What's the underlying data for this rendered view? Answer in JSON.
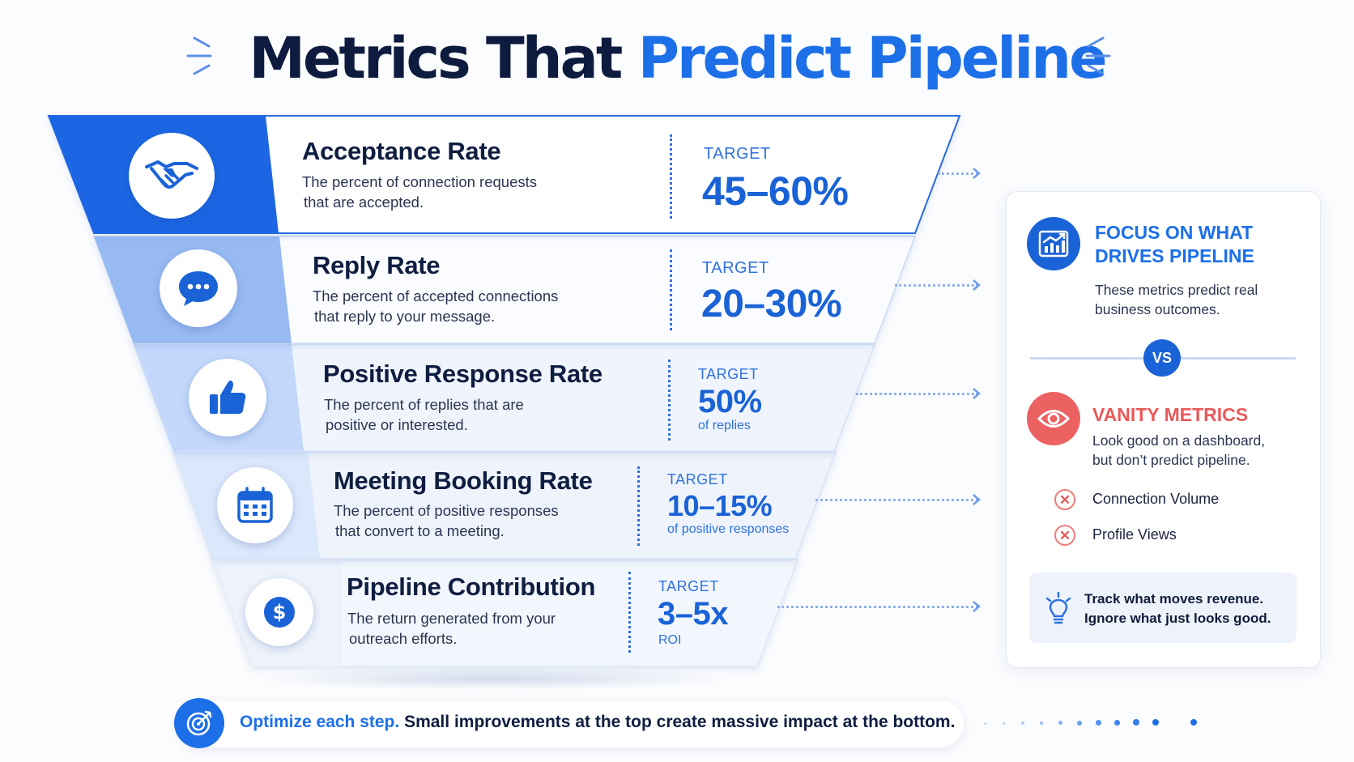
{
  "title": {
    "part1": "Metrics That",
    "part2": "Predict Pipeline"
  },
  "colors": {
    "primary": "#1d6fe8",
    "navy": "#0d1b3e",
    "danger": "#e85a5a"
  },
  "metrics": [
    {
      "icon": "handshake-icon",
      "title": "Acceptance Rate",
      "desc_line1": "The percent of connection requests",
      "desc_line2": "that are accepted.",
      "target_label": "TARGET",
      "target_value": "45–60%",
      "target_sub": ""
    },
    {
      "icon": "chat-bubble-icon",
      "title": "Reply Rate",
      "desc_line1": "The percent of accepted connections",
      "desc_line2": "that reply to your message.",
      "target_label": "TARGET",
      "target_value": "20–30%",
      "target_sub": ""
    },
    {
      "icon": "thumbs-up-icon",
      "title": "Positive Response Rate",
      "desc_line1": "The percent of replies that are",
      "desc_line2": "positive or interested.",
      "target_label": "TARGET",
      "target_value": "50%",
      "target_sub": "of replies"
    },
    {
      "icon": "calendar-icon",
      "title": "Meeting Booking Rate",
      "desc_line1": "The percent of positive responses",
      "desc_line2": "that convert to a meeting.",
      "target_label": "TARGET",
      "target_value": "10–15%",
      "target_sub": "of positive responses"
    },
    {
      "icon": "dollar-coin-icon",
      "title": "Pipeline Contribution",
      "desc_line1": "The return generated from your",
      "desc_line2": "outreach efforts.",
      "target_label": "TARGET",
      "target_value": "3–5x",
      "target_sub": "ROI"
    }
  ],
  "panel": {
    "focus_icon": "growth-chart-icon",
    "focus_title_line1": "FOCUS ON WHAT",
    "focus_title_line2": "DRIVES PIPELINE",
    "focus_desc_line1": "These metrics predict real",
    "focus_desc_line2": "business outcomes.",
    "vs_label": "VS",
    "vanity_icon": "eye-icon",
    "vanity_title": "VANITY METRICS",
    "vanity_desc_line1": "Look good on a dashboard,",
    "vanity_desc_line2": "but don’t predict pipeline.",
    "vanity_items": [
      "Connection Volume",
      "Profile Views"
    ],
    "tip_icon": "lightbulb-icon",
    "tip_line1": "Track what moves revenue.",
    "tip_line2": "Ignore what just looks good."
  },
  "footer": {
    "icon": "target-icon",
    "highlight": "Optimize each step.",
    "text": "Small improvements at the top create massive impact at the bottom."
  }
}
